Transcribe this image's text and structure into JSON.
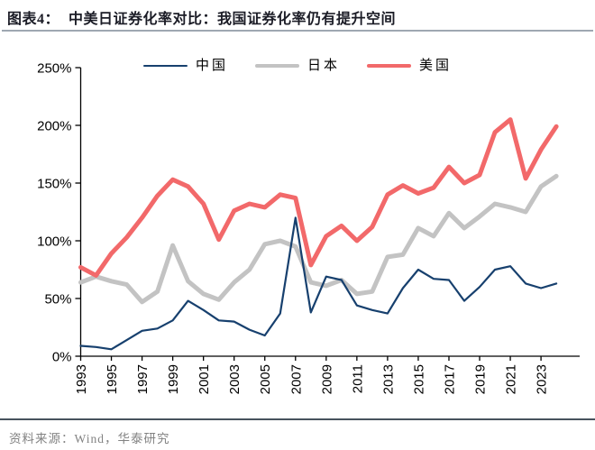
{
  "header": {
    "title_prefix": "图表4：",
    "title": "中美日证券化率对比：我国证券化率仍有提升空间"
  },
  "footer": {
    "source": "资料来源：Wind，华泰研究"
  },
  "chart_data": {
    "type": "line",
    "title": "中美日证券化率对比",
    "x": [
      1993,
      1994,
      1995,
      1996,
      1997,
      1998,
      1999,
      2000,
      2001,
      2002,
      2003,
      2004,
      2005,
      2006,
      2007,
      2008,
      2009,
      2010,
      2011,
      2012,
      2013,
      2014,
      2015,
      2016,
      2017,
      2018,
      2019,
      2020,
      2021,
      2022,
      2023,
      2024
    ],
    "series": [
      {
        "name": "中国",
        "color": "#17406e",
        "line_width": 2.2,
        "values": [
          9,
          8,
          6,
          14,
          22,
          24,
          31,
          48,
          40,
          31,
          30,
          23,
          18,
          37,
          120,
          38,
          69,
          66,
          44,
          40,
          37,
          59,
          75,
          67,
          66,
          48,
          60,
          75,
          78,
          63,
          59,
          63
        ]
      },
      {
        "name": "日本",
        "color": "#c3c3c3",
        "line_width": 5,
        "values": [
          64,
          69,
          65,
          62,
          47,
          56,
          96,
          65,
          54,
          49,
          64,
          75,
          97,
          100,
          95,
          64,
          61,
          66,
          54,
          56,
          86,
          88,
          111,
          104,
          124,
          111,
          121,
          132,
          129,
          125,
          147,
          156
        ]
      },
      {
        "name": "美国",
        "color": "#f2696a",
        "line_width": 5,
        "values": [
          77,
          70,
          89,
          103,
          120,
          139,
          153,
          147,
          132,
          101,
          126,
          132,
          129,
          140,
          137,
          79,
          104,
          113,
          100,
          112,
          140,
          148,
          141,
          146,
          164,
          150,
          157,
          194,
          205,
          154,
          179,
          199
        ]
      }
    ],
    "unit": "%",
    "ylim": [
      0,
      250
    ],
    "y_tick_values": [
      0,
      50,
      100,
      150,
      200,
      250
    ],
    "y_tick_labels": [
      "0%",
      "50%",
      "100%",
      "150%",
      "200%",
      "250%"
    ],
    "x_tick_labels": [
      "1993",
      "1995",
      "1997",
      "1999",
      "2001",
      "2003",
      "2005",
      "2007",
      "2009",
      "2011",
      "2013",
      "2015",
      "2017",
      "2019",
      "2021",
      "2023"
    ],
    "grid": false,
    "legend_position": "top"
  }
}
